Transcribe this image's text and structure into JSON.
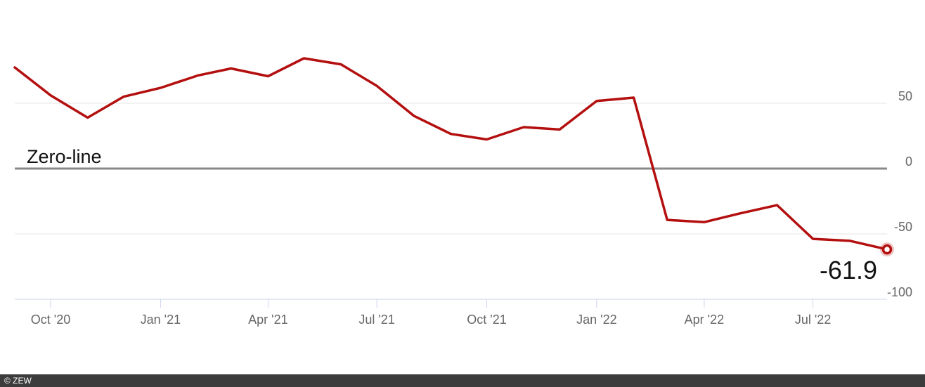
{
  "chart_data": {
    "type": "line",
    "x": [
      "2020-09",
      "2020-10",
      "2020-11",
      "2020-12",
      "2021-01",
      "2021-02",
      "2021-03",
      "2021-04",
      "2021-05",
      "2021-06",
      "2021-07",
      "2021-08",
      "2021-09",
      "2021-10",
      "2021-11",
      "2021-12",
      "2022-01",
      "2022-02",
      "2022-03",
      "2022-04",
      "2022-05",
      "2022-06",
      "2022-07",
      "2022-08",
      "2022-09"
    ],
    "series": [
      {
        "values": [
          77.4,
          56.1,
          39.0,
          55.0,
          61.8,
          71.2,
          76.6,
          70.7,
          84.4,
          79.8,
          63.3,
          40.4,
          26.5,
          22.3,
          31.7,
          29.9,
          51.7,
          54.3,
          -39.3,
          -41.0,
          -34.3,
          -28.0,
          -53.8,
          -55.3,
          -61.9
        ],
        "color": "#b40f0f"
      }
    ],
    "xticks": [
      {
        "x": "2020-10",
        "label": "Oct '20"
      },
      {
        "x": "2021-01",
        "label": "Jan '21"
      },
      {
        "x": "2021-04",
        "label": "Apr '21"
      },
      {
        "x": "2021-07",
        "label": "Jul '21"
      },
      {
        "x": "2021-10",
        "label": "Oct '21"
      },
      {
        "x": "2022-01",
        "label": "Jan '22"
      },
      {
        "x": "2022-04",
        "label": "Apr '22"
      },
      {
        "x": "2022-07",
        "label": "Jul '22"
      }
    ],
    "yticks": [
      {
        "y": 50,
        "label": "50"
      },
      {
        "y": 0,
        "label": "0"
      },
      {
        "y": -50,
        "label": "-50"
      },
      {
        "y": -100,
        "label": "-100"
      }
    ],
    "ylim": [
      -100,
      90
    ],
    "y_axis_side": "right",
    "grid": true,
    "zero_line_label": "Zero-line",
    "last_value_label": "-61.9",
    "title": "",
    "xlabel": "",
    "ylabel": ""
  },
  "footer": {
    "credit": "© ZEW"
  }
}
